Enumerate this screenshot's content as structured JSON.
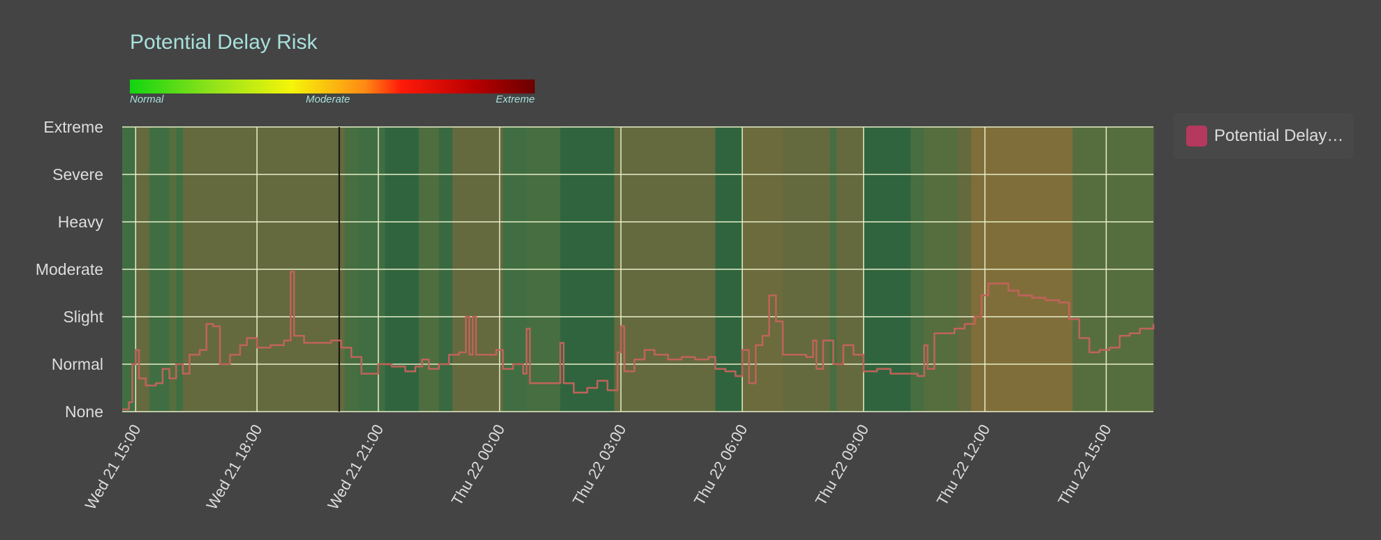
{
  "chart_data": {
    "type": "line",
    "title": "Potential Delay Risk",
    "color_scale": {
      "labels": [
        "Normal",
        "Moderate",
        "Extreme"
      ],
      "colors": [
        "#11d411",
        "#f5f50a",
        "#ff1a0a",
        "#6a0000"
      ]
    },
    "y_categories": [
      "None",
      "Normal",
      "Slight",
      "Moderate",
      "Heavy",
      "Severe",
      "Extreme"
    ],
    "ylim": [
      0,
      6
    ],
    "x_start": "Wed 21 14:40",
    "x_end": "Thu 22 16:10",
    "x_ticks": [
      {
        "label": "Wed 21 15:00",
        "time": "Wed 21 15:00"
      },
      {
        "label": "Wed 21 18:00",
        "time": "Wed 21 18:00"
      },
      {
        "label": "Wed 21 21:00",
        "time": "Wed 21 21:00"
      },
      {
        "label": "Thu 22 00:00",
        "time": "Thu 22 00:00"
      },
      {
        "label": "Thu 22 03:00",
        "time": "Thu 22 03:00"
      },
      {
        "label": "Thu 22 06:00",
        "time": "Thu 22 06:00"
      },
      {
        "label": "Thu 22 09:00",
        "time": "Thu 22 09:00"
      },
      {
        "label": "Thu 22 12:00",
        "time": "Thu 22 12:00"
      },
      {
        "label": "Thu 22 15:00",
        "time": "Thu 22 15:00"
      }
    ],
    "now_marker": "Wed 21 20:02",
    "grid": true,
    "legend_position": "top-right",
    "series": [
      {
        "name": "Potential Delay…",
        "color": "#c0635a",
        "points": [
          [
            "Wed 21 14:40",
            0.05
          ],
          [
            "Wed 21 14:50",
            0.2
          ],
          [
            "Wed 21 14:55",
            1.0
          ],
          [
            "Wed 21 15:00",
            1.3
          ],
          [
            "Wed 21 15:05",
            0.7
          ],
          [
            "Wed 21 15:15",
            0.55
          ],
          [
            "Wed 21 15:30",
            0.6
          ],
          [
            "Wed 21 15:40",
            0.9
          ],
          [
            "Wed 21 15:50",
            0.7
          ],
          [
            "Wed 21 16:00",
            1.0
          ],
          [
            "Wed 21 16:10",
            0.8
          ],
          [
            "Wed 21 16:20",
            1.2
          ],
          [
            "Wed 21 16:35",
            1.3
          ],
          [
            "Wed 21 16:45",
            1.85
          ],
          [
            "Wed 21 16:55",
            1.8
          ],
          [
            "Wed 21 17:05",
            1.0
          ],
          [
            "Wed 21 17:20",
            1.2
          ],
          [
            "Wed 21 17:35",
            1.4
          ],
          [
            "Wed 21 17:45",
            1.55
          ],
          [
            "Wed 21 18:00",
            1.35
          ],
          [
            "Wed 21 18:20",
            1.4
          ],
          [
            "Wed 21 18:40",
            1.5
          ],
          [
            "Wed 21 18:50",
            2.95
          ],
          [
            "Wed 21 18:55",
            1.6
          ],
          [
            "Wed 21 19:10",
            1.45
          ],
          [
            "Wed 21 19:30",
            1.45
          ],
          [
            "Wed 21 19:50",
            1.5
          ],
          [
            "Wed 21 20:05",
            1.35
          ],
          [
            "Wed 21 20:20",
            1.15
          ],
          [
            "Wed 21 20:35",
            0.8
          ],
          [
            "Wed 21 20:50",
            0.8
          ],
          [
            "Wed 21 21:00",
            1.0
          ],
          [
            "Wed 21 21:20",
            0.95
          ],
          [
            "Wed 21 21:40",
            0.85
          ],
          [
            "Wed 21 21:55",
            0.95
          ],
          [
            "Wed 21 22:05",
            1.1
          ],
          [
            "Wed 21 22:15",
            0.9
          ],
          [
            "Wed 21 22:30",
            1.0
          ],
          [
            "Wed 21 22:45",
            1.2
          ],
          [
            "Wed 21 23:00",
            1.25
          ],
          [
            "Wed 21 23:10",
            2.0
          ],
          [
            "Wed 21 23:15",
            1.2
          ],
          [
            "Wed 21 23:20",
            2.0
          ],
          [
            "Wed 21 23:25",
            1.2
          ],
          [
            "Wed 21 23:40",
            1.2
          ],
          [
            "Wed 21 23:55",
            1.3
          ],
          [
            "Thu 22 00:05",
            0.9
          ],
          [
            "Thu 22 00:20",
            1.0
          ],
          [
            "Thu 22 00:35",
            0.8
          ],
          [
            "Thu 22 00:40",
            1.75
          ],
          [
            "Thu 22 00:45",
            0.6
          ],
          [
            "Thu 22 01:00",
            0.6
          ],
          [
            "Thu 22 01:15",
            0.6
          ],
          [
            "Thu 22 01:30",
            1.45
          ],
          [
            "Thu 22 01:35",
            0.6
          ],
          [
            "Thu 22 01:50",
            0.4
          ],
          [
            "Thu 22 02:10",
            0.5
          ],
          [
            "Thu 22 02:25",
            0.65
          ],
          [
            "Thu 22 02:40",
            0.45
          ],
          [
            "Thu 22 02:55",
            1.25
          ],
          [
            "Thu 22 03:00",
            1.8
          ],
          [
            "Thu 22 03:05",
            0.85
          ],
          [
            "Thu 22 03:20",
            1.1
          ],
          [
            "Thu 22 03:35",
            1.3
          ],
          [
            "Thu 22 03:50",
            1.2
          ],
          [
            "Thu 22 04:10",
            1.1
          ],
          [
            "Thu 22 04:30",
            1.15
          ],
          [
            "Thu 22 04:50",
            1.1
          ],
          [
            "Thu 22 05:10",
            1.15
          ],
          [
            "Thu 22 05:20",
            0.9
          ],
          [
            "Thu 22 05:35",
            0.85
          ],
          [
            "Thu 22 05:50",
            0.75
          ],
          [
            "Thu 22 06:00",
            1.3
          ],
          [
            "Thu 22 06:10",
            0.6
          ],
          [
            "Thu 22 06:20",
            1.4
          ],
          [
            "Thu 22 06:30",
            1.6
          ],
          [
            "Thu 22 06:40",
            2.45
          ],
          [
            "Thu 22 06:50",
            1.9
          ],
          [
            "Thu 22 07:00",
            1.2
          ],
          [
            "Thu 22 07:20",
            1.2
          ],
          [
            "Thu 22 07:35",
            1.15
          ],
          [
            "Thu 22 07:45",
            1.5
          ],
          [
            "Thu 22 07:50",
            0.9
          ],
          [
            "Thu 22 08:00",
            1.5
          ],
          [
            "Thu 22 08:15",
            1.0
          ],
          [
            "Thu 22 08:30",
            1.4
          ],
          [
            "Thu 22 08:45",
            1.2
          ],
          [
            "Thu 22 09:00",
            0.85
          ],
          [
            "Thu 22 09:20",
            0.9
          ],
          [
            "Thu 22 09:40",
            0.8
          ],
          [
            "Thu 22 10:00",
            0.8
          ],
          [
            "Thu 22 10:20",
            0.75
          ],
          [
            "Thu 22 10:30",
            1.4
          ],
          [
            "Thu 22 10:35",
            0.9
          ],
          [
            "Thu 22 10:45",
            1.65
          ],
          [
            "Thu 22 11:00",
            1.65
          ],
          [
            "Thu 22 11:15",
            1.75
          ],
          [
            "Thu 22 11:30",
            1.85
          ],
          [
            "Thu 22 11:45",
            2.0
          ],
          [
            "Thu 22 11:55",
            2.45
          ],
          [
            "Thu 22 12:05",
            2.7
          ],
          [
            "Thu 22 12:20",
            2.7
          ],
          [
            "Thu 22 12:35",
            2.55
          ],
          [
            "Thu 22 12:50",
            2.45
          ],
          [
            "Thu 22 13:10",
            2.4
          ],
          [
            "Thu 22 13:30",
            2.35
          ],
          [
            "Thu 22 13:50",
            2.3
          ],
          [
            "Thu 22 14:05",
            1.95
          ],
          [
            "Thu 22 14:20",
            1.55
          ],
          [
            "Thu 22 14:35",
            1.25
          ],
          [
            "Thu 22 14:50",
            1.3
          ],
          [
            "Thu 22 15:05",
            1.35
          ],
          [
            "Thu 22 15:20",
            1.6
          ],
          [
            "Thu 22 15:35",
            1.65
          ],
          [
            "Thu 22 15:50",
            1.75
          ],
          [
            "Thu 22 16:10",
            1.85
          ]
        ]
      }
    ],
    "background_risk_bands": [
      {
        "start": "Wed 21 14:40",
        "end": "Wed 21 15:00",
        "level": 0.5
      },
      {
        "start": "Wed 21 15:00",
        "end": "Wed 21 15:20",
        "level": 1.0
      },
      {
        "start": "Wed 21 15:20",
        "end": "Wed 21 15:50",
        "level": 0.5
      },
      {
        "start": "Wed 21 15:50",
        "end": "Wed 21 16:00",
        "level": 0.8
      },
      {
        "start": "Wed 21 16:00",
        "end": "Wed 21 16:10",
        "level": 0.5
      },
      {
        "start": "Wed 21 16:10",
        "end": "Wed 21 20:10",
        "level": 1.0
      },
      {
        "start": "Wed 21 20:10",
        "end": "Wed 21 20:30",
        "level": 0.6
      },
      {
        "start": "Wed 21 20:30",
        "end": "Wed 21 21:10",
        "level": 0.5
      },
      {
        "start": "Wed 21 21:10",
        "end": "Wed 21 22:00",
        "level": 0.3
      },
      {
        "start": "Wed 21 22:00",
        "end": "Wed 21 22:30",
        "level": 0.7
      },
      {
        "start": "Wed 21 22:30",
        "end": "Wed 21 22:50",
        "level": 0.4
      },
      {
        "start": "Wed 21 22:50",
        "end": "Thu 22 00:05",
        "level": 1.0
      },
      {
        "start": "Thu 22 00:05",
        "end": "Thu 22 00:40",
        "level": 0.5
      },
      {
        "start": "Thu 22 00:40",
        "end": "Thu 22 01:30",
        "level": 0.6
      },
      {
        "start": "Thu 22 01:30",
        "end": "Thu 22 02:50",
        "level": 0.3
      },
      {
        "start": "Thu 22 02:50",
        "end": "Thu 22 05:20",
        "level": 1.0
      },
      {
        "start": "Thu 22 05:20",
        "end": "Thu 22 06:00",
        "level": 0.3
      },
      {
        "start": "Thu 22 06:00",
        "end": "Thu 22 07:00",
        "level": 1.1
      },
      {
        "start": "Thu 22 07:00",
        "end": "Thu 22 08:10",
        "level": 1.0
      },
      {
        "start": "Thu 22 08:10",
        "end": "Thu 22 08:20",
        "level": 0.6
      },
      {
        "start": "Thu 22 08:20",
        "end": "Thu 22 09:00",
        "level": 1.0
      },
      {
        "start": "Thu 22 09:00",
        "end": "Thu 22 10:10",
        "level": 0.3
      },
      {
        "start": "Thu 22 10:10",
        "end": "Thu 22 10:30",
        "level": 0.6
      },
      {
        "start": "Thu 22 10:30",
        "end": "Thu 22 11:20",
        "level": 0.8
      },
      {
        "start": "Thu 22 11:20",
        "end": "Thu 22 11:40",
        "level": 1.0
      },
      {
        "start": "Thu 22 11:40",
        "end": "Thu 22 14:10",
        "level": 1.4
      },
      {
        "start": "Thu 22 14:10",
        "end": "Thu 22 16:10",
        "level": 0.8
      }
    ]
  }
}
